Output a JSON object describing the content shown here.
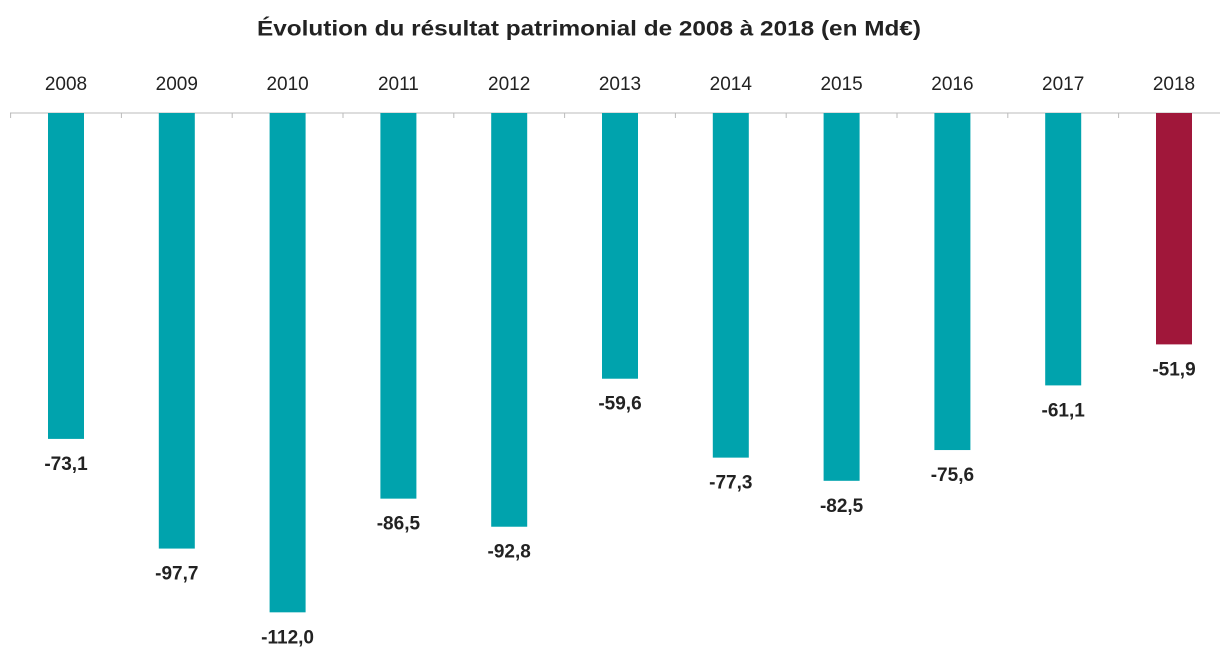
{
  "chart_data": {
    "type": "bar",
    "title": "Évolution du résultat patrimonial de 2008 à 2018 (en Md€)",
    "categories": [
      "2008",
      "2009",
      "2010",
      "2011",
      "2012",
      "2013",
      "2014",
      "2015",
      "2016",
      "2017",
      "2018"
    ],
    "values": [
      -73.1,
      -97.7,
      -112.0,
      -86.5,
      -92.8,
      -59.6,
      -77.3,
      -82.5,
      -75.6,
      -61.1,
      -51.9
    ],
    "value_labels": [
      "-73,1",
      "-97,7",
      "-112,0",
      "-86,5",
      "-92,8",
      "-59,6",
      "-77,3",
      "-82,5",
      "-75,6",
      "-61,1",
      "-51,9"
    ],
    "colors": [
      "#00a3ad",
      "#00a3ad",
      "#00a3ad",
      "#00a3ad",
      "#00a3ad",
      "#00a3ad",
      "#00a3ad",
      "#00a3ad",
      "#00a3ad",
      "#00a3ad",
      "#a0173a"
    ],
    "ylim": [
      -120,
      0
    ]
  }
}
